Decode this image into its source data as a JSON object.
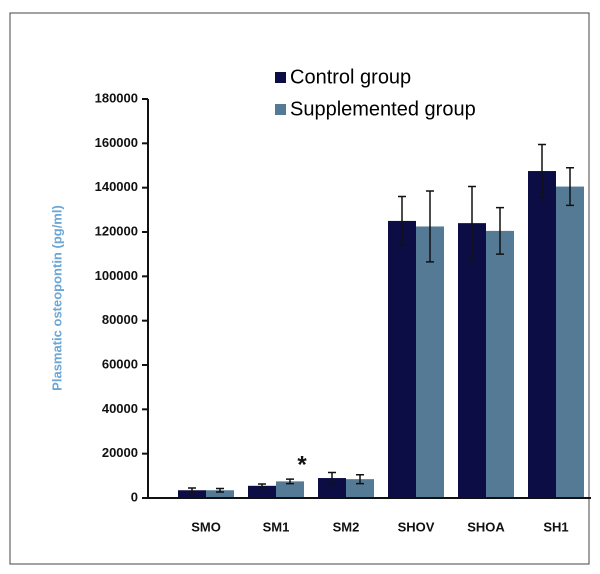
{
  "chart_data": {
    "type": "bar",
    "y_label": "Plasmatic osteopontin (pg/ml)",
    "categories": [
      "SMO",
      "SM1",
      "SM2",
      "SHOV",
      "SHOA",
      "SH1"
    ],
    "series": [
      {
        "name": "Control group",
        "color": "#0d0d45",
        "values": [
          3500,
          5500,
          9000,
          125000,
          124000,
          147500
        ],
        "errors": [
          1000,
          800,
          2500,
          11000,
          16500,
          12000
        ]
      },
      {
        "name": "Supplemented group",
        "color": "#557a95",
        "values": [
          3500,
          7500,
          8500,
          122500,
          120500,
          140500
        ],
        "errors": [
          800,
          1000,
          2000,
          16000,
          10500,
          8500
        ]
      }
    ],
    "ylim": [
      0,
      180000
    ],
    "yticks": [
      0,
      20000,
      40000,
      60000,
      80000,
      100000,
      120000,
      140000,
      160000,
      180000
    ],
    "annotations": [
      {
        "text": "*"
      }
    ]
  }
}
